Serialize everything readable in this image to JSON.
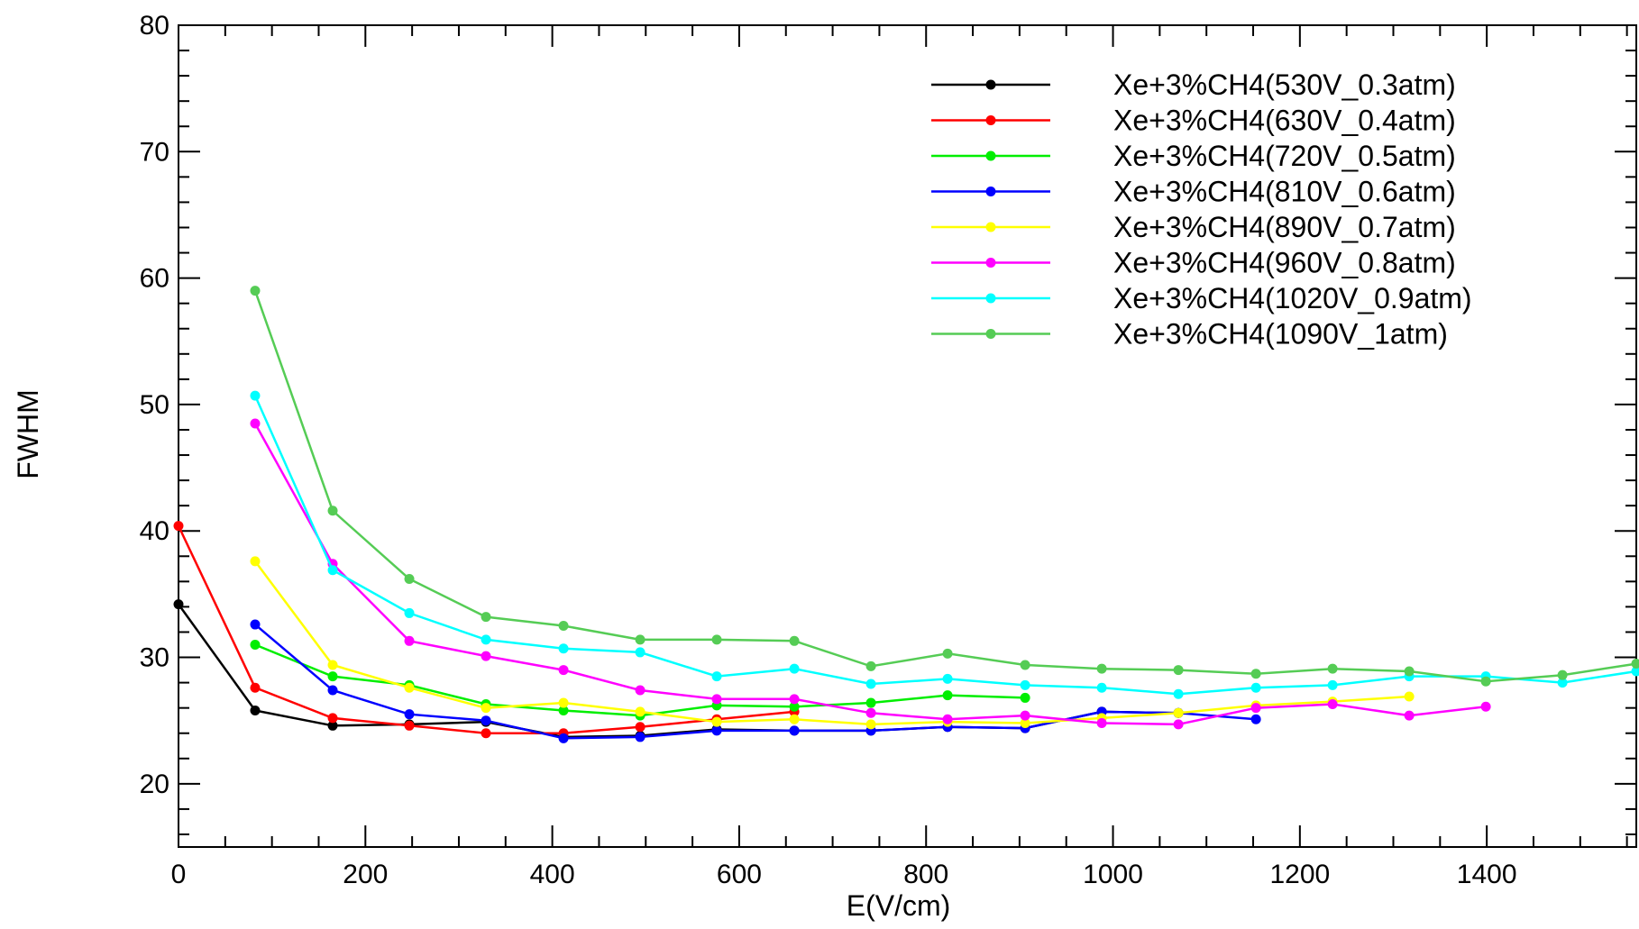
{
  "chart_data": {
    "type": "line",
    "title": "",
    "xlabel": "E(V/cm)",
    "ylabel": "FWHM",
    "xlim": [
      0,
      1560
    ],
    "ylim": [
      15,
      80
    ],
    "x_ticks": [
      0,
      200,
      400,
      600,
      800,
      1000,
      1200,
      1400
    ],
    "y_ticks": [
      20,
      30,
      40,
      50,
      60,
      70,
      80
    ],
    "grid": false,
    "legend_position": "top-right",
    "series": [
      {
        "name": "Xe+3%CH4(530V_0.3atm)",
        "color": "#000000",
        "x": [
          0,
          82,
          165,
          247,
          329,
          412,
          494,
          576,
          659,
          741,
          823,
          906,
          988,
          1070
        ],
        "y": [
          34.2,
          25.8,
          24.6,
          24.7,
          24.9,
          23.7,
          23.8,
          24.3,
          24.2,
          24.2,
          24.5,
          24.4,
          25.7,
          25.6
        ]
      },
      {
        "name": "Xe+3%CH4(630V_0.4atm)",
        "color": "#ff0000",
        "x": [
          0,
          82,
          165,
          247,
          329,
          412,
          494,
          576,
          659
        ],
        "y": [
          40.4,
          27.6,
          25.2,
          24.6,
          24.0,
          24.0,
          24.5,
          25.1,
          25.7
        ]
      },
      {
        "name": "Xe+3%CH4(720V_0.5atm)",
        "color": "#00ee00",
        "x": [
          82,
          165,
          247,
          329,
          412,
          494,
          576,
          659,
          741,
          823,
          906
        ],
        "y": [
          31.0,
          28.5,
          27.8,
          26.3,
          25.8,
          25.4,
          26.2,
          26.1,
          26.4,
          27.0,
          26.8
        ]
      },
      {
        "name": "Xe+3%CH4(810V_0.6atm)",
        "color": "#0000ff",
        "x": [
          82,
          165,
          247,
          329,
          412,
          494,
          576,
          659,
          741,
          823,
          906,
          988,
          1070,
          1153
        ],
        "y": [
          32.6,
          27.4,
          25.5,
          25.0,
          23.6,
          23.7,
          24.2,
          24.2,
          24.2,
          24.5,
          24.4,
          25.7,
          25.6,
          25.1
        ]
      },
      {
        "name": "Xe+3%CH4(890V_0.7atm)",
        "color": "#ffff00",
        "x": [
          82,
          165,
          247,
          329,
          412,
          494,
          576,
          659,
          741,
          823,
          906,
          988,
          1070,
          1153,
          1235,
          1317
        ],
        "y": [
          37.6,
          29.4,
          27.6,
          26.0,
          26.4,
          25.7,
          24.9,
          25.1,
          24.7,
          24.9,
          24.8,
          25.2,
          25.6,
          26.2,
          26.5,
          26.9
        ]
      },
      {
        "name": "Xe+3%CH4(960V_0.8atm)",
        "color": "#ff00ff",
        "x": [
          82,
          165,
          247,
          329,
          412,
          494,
          576,
          659,
          741,
          823,
          906,
          988,
          1070,
          1153,
          1235,
          1317,
          1399
        ],
        "y": [
          48.5,
          37.4,
          31.3,
          30.1,
          29.0,
          27.4,
          26.7,
          26.7,
          25.6,
          25.1,
          25.4,
          24.8,
          24.7,
          26.0,
          26.3,
          25.4,
          26.1
        ]
      },
      {
        "name": "Xe+3%CH4(1020V_0.9atm)",
        "color": "#00ffff",
        "x": [
          82,
          165,
          247,
          329,
          412,
          494,
          576,
          659,
          741,
          823,
          906,
          988,
          1070,
          1153,
          1235,
          1317,
          1399,
          1481,
          1560
        ],
        "y": [
          50.7,
          36.9,
          33.5,
          31.4,
          30.7,
          30.4,
          28.5,
          29.1,
          27.9,
          28.3,
          27.8,
          27.6,
          27.1,
          27.6,
          27.8,
          28.5,
          28.5,
          28.0,
          28.9
        ]
      },
      {
        "name": "Xe+3%CH4(1090V_1atm)",
        "color": "#55cc55",
        "x": [
          82,
          165,
          247,
          329,
          412,
          494,
          576,
          659,
          741,
          823,
          906,
          988,
          1070,
          1153,
          1235,
          1317,
          1399,
          1481,
          1560
        ],
        "y": [
          59.0,
          41.6,
          36.2,
          33.2,
          32.5,
          31.4,
          31.4,
          31.3,
          29.3,
          30.3,
          29.4,
          29.1,
          29.0,
          28.7,
          29.1,
          28.9,
          28.1,
          28.6,
          29.5
        ]
      }
    ]
  }
}
